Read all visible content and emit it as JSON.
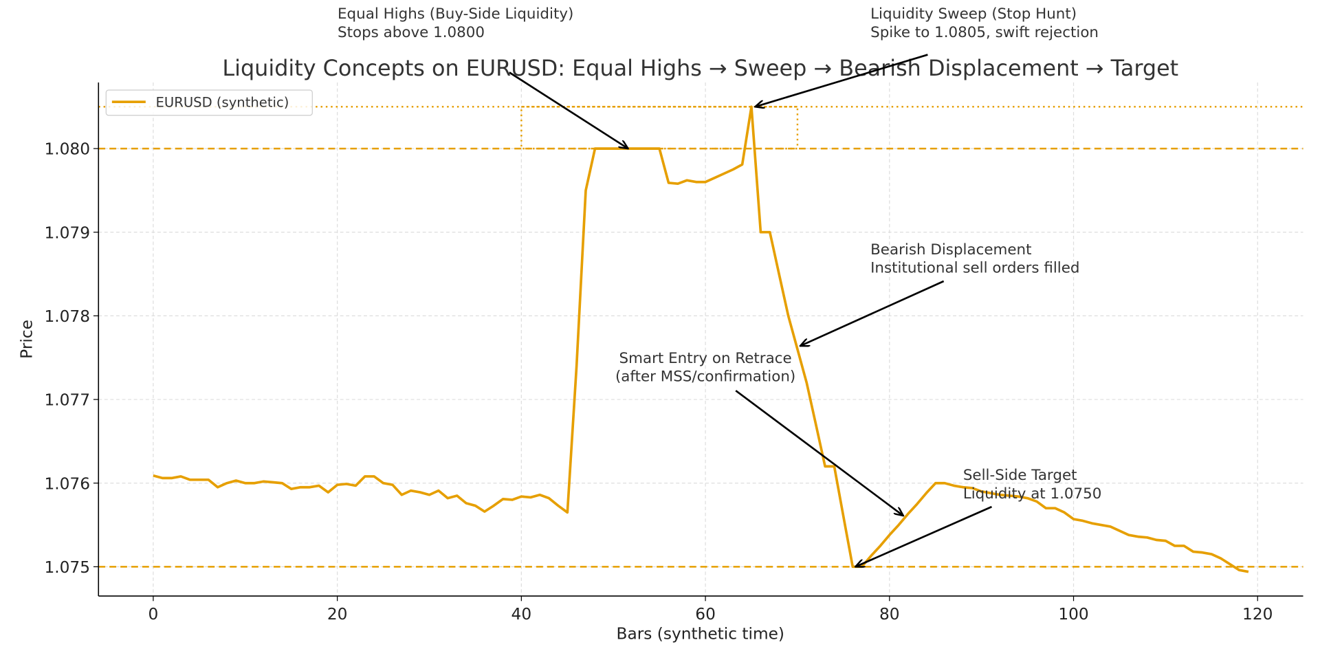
{
  "chart_data": {
    "type": "line",
    "title": "Liquidity Concepts on EURUSD: Equal Highs → Sweep → Bearish Displacement → Target",
    "xlabel": "Bars (synthetic time)",
    "ylabel": "Price",
    "xlim": [
      -5.95,
      124.95
    ],
    "ylim": [
      1.07465,
      1.08079
    ],
    "xticks": [
      0,
      20,
      40,
      60,
      80,
      100,
      120
    ],
    "yticks": [
      1.075,
      1.076,
      1.077,
      1.078,
      1.079,
      1.08
    ],
    "ytick_labels": [
      "1.075",
      "1.076",
      "1.077",
      "1.078",
      "1.079",
      "1.080"
    ],
    "grid": true,
    "legend": "upper-left",
    "colors": {
      "series": "#E69F00",
      "arrow": "#000000",
      "grid": "#dddddd"
    },
    "series": [
      {
        "name": "EURUSD (synthetic)",
        "x_start": 0,
        "values": [
          1.07609,
          1.07606,
          1.07606,
          1.07608,
          1.07604,
          1.07604,
          1.07604,
          1.07595,
          1.076,
          1.07603,
          1.076,
          1.076,
          1.07602,
          1.07601,
          1.076,
          1.07593,
          1.07595,
          1.07595,
          1.07597,
          1.07589,
          1.07598,
          1.07599,
          1.07597,
          1.07608,
          1.07608,
          1.076,
          1.07598,
          1.07586,
          1.07591,
          1.07589,
          1.07586,
          1.07591,
          1.07582,
          1.07585,
          1.07576,
          1.07573,
          1.07566,
          1.07573,
          1.07581,
          1.0758,
          1.07584,
          1.07583,
          1.07586,
          1.07582,
          1.07573,
          1.07565,
          1.0774,
          1.0795,
          1.08,
          1.08,
          1.08,
          1.08,
          1.08,
          1.08,
          1.08,
          1.08,
          1.07959,
          1.07958,
          1.07962,
          1.0796,
          1.0796,
          1.07965,
          1.0797,
          1.07975,
          1.07981,
          1.0805,
          1.079,
          1.079,
          1.0785,
          1.078,
          1.0776,
          1.0772,
          1.0767,
          1.0762,
          1.0762,
          1.0756,
          1.075,
          1.075,
          1.07513,
          1.07525,
          1.07538,
          1.0755,
          1.07563,
          1.07575,
          1.07588,
          1.076,
          1.076,
          1.07597,
          1.07595,
          1.07594,
          1.0759,
          1.07588,
          1.07586,
          1.07585,
          1.07584,
          1.07582,
          1.07578,
          1.0757,
          1.0757,
          1.07565,
          1.07557,
          1.07555,
          1.07552,
          1.0755,
          1.07548,
          1.07543,
          1.07538,
          1.07536,
          1.07535,
          1.07532,
          1.07531,
          1.07525,
          1.07525,
          1.07518,
          1.07517,
          1.07515,
          1.0751,
          1.07503,
          1.07496,
          1.07494
        ]
      }
    ],
    "reference_lines": [
      {
        "y": 1.0805,
        "style": "dotted"
      },
      {
        "y": 1.08,
        "style": "dashed"
      },
      {
        "y": 1.075,
        "style": "dashed"
      }
    ],
    "highlight_box": {
      "x": [
        40,
        70
      ],
      "y": [
        1.08,
        1.0805
      ],
      "style": "dotted"
    },
    "annotations": [
      {
        "lines": [
          "Equal Highs (Buy-Side Liquidity)",
          "Stops above 1.0800"
        ],
        "target": [
          51.6,
          1.08
        ]
      },
      {
        "lines": [
          "Liquidity Sweep (Stop Hunt)",
          "Spike to 1.0805, swift rejection"
        ],
        "target": [
          65.4,
          1.0805
        ]
      },
      {
        "lines": [
          "Bearish Displacement",
          "Institutional sell orders filled"
        ],
        "target": [
          70.3,
          1.07764
        ]
      },
      {
        "lines": [
          "Smart Entry on Retrace",
          "(after MSS/confirmation)"
        ],
        "target": [
          81.5,
          1.07561
        ]
      },
      {
        "lines": [
          "Sell-Side Target",
          "Liquidity at 1.0750"
        ],
        "target": [
          76.3,
          1.075
        ]
      }
    ]
  }
}
